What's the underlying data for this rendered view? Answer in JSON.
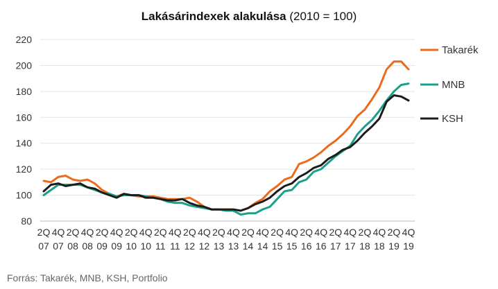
{
  "chart_data": {
    "type": "line",
    "title": "Lakásárindexek alakulása",
    "subtitle": "(2010 = 100)",
    "xlabel": "",
    "ylabel": "",
    "ylim": [
      80,
      220
    ],
    "yticks": [
      80,
      100,
      120,
      140,
      160,
      180,
      200,
      220
    ],
    "grid": true,
    "legend": "right",
    "x_tick_labels": [
      {
        "q": "2Q",
        "y": "07"
      },
      {
        "q": "4Q",
        "y": "07"
      },
      {
        "q": "2Q",
        "y": "08"
      },
      {
        "q": "4Q",
        "y": "08"
      },
      {
        "q": "2Q",
        "y": "09"
      },
      {
        "q": "4Q",
        "y": "09"
      },
      {
        "q": "2Q",
        "y": "10"
      },
      {
        "q": "4Q",
        "y": "10"
      },
      {
        "q": "2Q",
        "y": "11"
      },
      {
        "q": "4Q",
        "y": "11"
      },
      {
        "q": "2Q",
        "y": "12"
      },
      {
        "q": "4Q",
        "y": "12"
      },
      {
        "q": "2Q",
        "y": "13"
      },
      {
        "q": "4Q",
        "y": "13"
      },
      {
        "q": "2Q",
        "y": "14"
      },
      {
        "q": "4Q",
        "y": "14"
      },
      {
        "q": "2Q",
        "y": "15"
      },
      {
        "q": "4Q",
        "y": "15"
      },
      {
        "q": "2Q",
        "y": "16"
      },
      {
        "q": "4Q",
        "y": "16"
      },
      {
        "q": "2Q",
        "y": "17"
      },
      {
        "q": "4Q",
        "y": "17"
      },
      {
        "q": "2Q",
        "y": "18"
      },
      {
        "q": "4Q",
        "y": "18"
      },
      {
        "q": "2Q",
        "y": "19"
      },
      {
        "q": "4Q",
        "y": "19"
      }
    ],
    "x": [
      "2007Q2",
      "2007Q3",
      "2007Q4",
      "2008Q1",
      "2008Q2",
      "2008Q3",
      "2008Q4",
      "2009Q1",
      "2009Q2",
      "2009Q3",
      "2009Q4",
      "2010Q1",
      "2010Q2",
      "2010Q3",
      "2010Q4",
      "2011Q1",
      "2011Q2",
      "2011Q3",
      "2011Q4",
      "2012Q1",
      "2012Q2",
      "2012Q3",
      "2012Q4",
      "2013Q1",
      "2013Q2",
      "2013Q3",
      "2013Q4",
      "2014Q1",
      "2014Q2",
      "2014Q3",
      "2014Q4",
      "2015Q1",
      "2015Q2",
      "2015Q3",
      "2015Q4",
      "2016Q1",
      "2016Q2",
      "2016Q3",
      "2016Q4",
      "2017Q1",
      "2017Q2",
      "2017Q3",
      "2017Q4",
      "2018Q1",
      "2018Q2",
      "2018Q3",
      "2018Q4",
      "2019Q1",
      "2019Q2",
      "2019Q3",
      "2019Q4"
    ],
    "series": [
      {
        "name": "Takarék",
        "color": "#ec6a1c",
        "values": [
          111,
          110,
          114,
          115,
          112,
          111,
          112,
          109,
          104,
          101,
          99,
          101,
          100,
          99,
          99,
          99,
          98,
          97,
          97,
          97,
          98,
          95,
          91,
          89,
          89,
          89,
          89,
          88,
          90,
          94,
          97,
          103,
          107,
          112,
          114,
          124,
          126,
          129,
          133,
          138,
          142,
          147,
          153,
          161,
          166,
          174,
          183,
          197,
          203,
          203,
          197
        ]
      },
      {
        "name": "MNB",
        "color": "#1aa08a",
        "values": [
          100,
          104,
          108,
          108,
          108,
          108,
          106,
          104,
          102,
          101,
          99,
          100,
          100,
          100,
          99,
          98,
          97,
          95,
          94,
          94,
          92,
          91,
          90,
          89,
          89,
          88,
          88,
          85,
          86,
          86,
          89,
          91,
          97,
          103,
          104,
          110,
          112,
          118,
          120,
          125,
          130,
          134,
          138,
          147,
          153,
          158,
          165,
          173,
          180,
          185,
          186
        ]
      },
      {
        "name": "KSH",
        "color": "#1c1c1c",
        "values": [
          103,
          108,
          109,
          107,
          108,
          109,
          106,
          105,
          102,
          100,
          98,
          101,
          100,
          100,
          98,
          98,
          97,
          96,
          96,
          97,
          94,
          92,
          91,
          89,
          89,
          89,
          89,
          88,
          90,
          93,
          95,
          98,
          103,
          107,
          109,
          114,
          117,
          121,
          123,
          128,
          131,
          135,
          137,
          142,
          148,
          153,
          159,
          172,
          177,
          176,
          173
        ]
      }
    ],
    "source_text": "Forrás: Takarék, MNB, KSH, Portfolio"
  }
}
